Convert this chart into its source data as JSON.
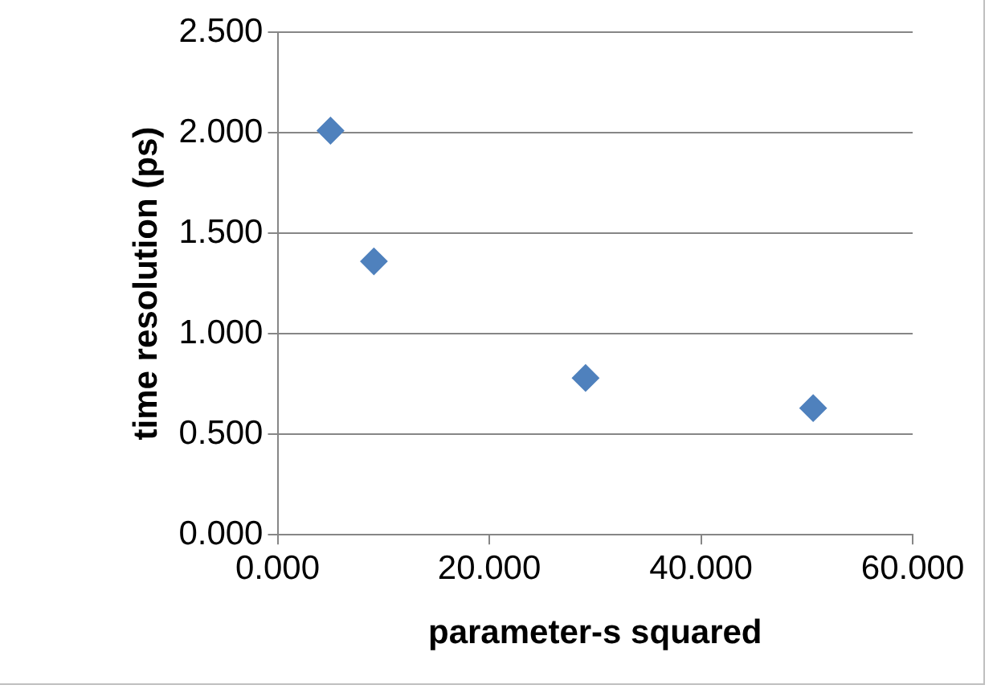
{
  "chart_data": {
    "type": "scatter",
    "xlabel": "parameter-s squared",
    "ylabel": "time resolution (ps)",
    "x": [
      5.0,
      9.1,
      29.1,
      50.6
    ],
    "series": [
      {
        "color": "#4f81bd",
        "values": [
          2.01,
          1.36,
          0.78,
          0.63
        ]
      }
    ],
    "xlim": [
      0,
      60
    ],
    "xticks": [
      {
        "value": 0,
        "label": "0.000"
      },
      {
        "value": 20,
        "label": "20.000"
      },
      {
        "value": 40,
        "label": "40.000"
      },
      {
        "value": 60,
        "label": "60.000"
      }
    ],
    "ylim": [
      0,
      2.5
    ],
    "yticks": [
      {
        "value": 0,
        "label": "0.000"
      },
      {
        "value": 0.5,
        "label": "0.500"
      },
      {
        "value": 1,
        "label": "1.000"
      },
      {
        "value": 1.5,
        "label": "1.500"
      },
      {
        "value": 2,
        "label": "2.000"
      },
      {
        "value": 2.5,
        "label": "2.500"
      }
    ],
    "grid": "y",
    "legend": false,
    "marker": "diamond"
  }
}
